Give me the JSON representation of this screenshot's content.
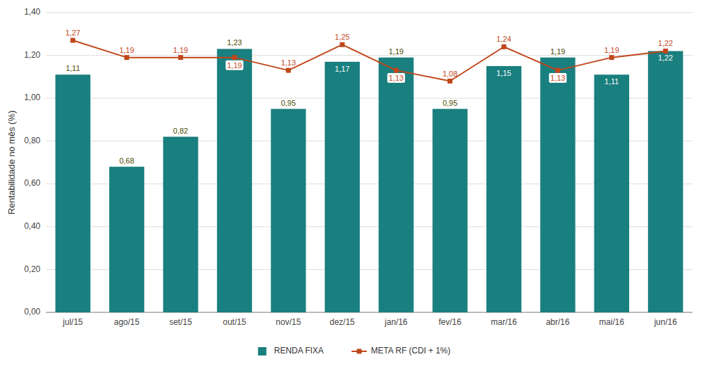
{
  "chart_data": {
    "type": "bar",
    "categories": [
      "jul/15",
      "ago/15",
      "set/15",
      "out/15",
      "nov/15",
      "dez/15",
      "jan/16",
      "fev/16",
      "mar/16",
      "abr/16",
      "mai/16",
      "jun/16"
    ],
    "series": [
      {
        "name": "RENDA FIXA",
        "type": "bar",
        "color": "#1a7f7f",
        "values": [
          1.11,
          0.68,
          0.82,
          1.23,
          0.95,
          1.17,
          1.19,
          0.95,
          1.15,
          1.19,
          1.11,
          1.22
        ],
        "value_labels": [
          "1,11",
          "0,68",
          "0,82",
          "1,23",
          "0,95",
          "1,17",
          "1,19",
          "0,95",
          "1,15",
          "1,19",
          "1,11",
          "1,22"
        ]
      },
      {
        "name": "META RF (CDI + 1%)",
        "type": "line",
        "color": "#c0471b",
        "marker": "square",
        "values": [
          1.27,
          1.19,
          1.19,
          1.19,
          1.13,
          1.25,
          1.13,
          1.08,
          1.24,
          1.13,
          1.19,
          1.22
        ],
        "value_labels": [
          "1,27",
          "1,19",
          "1,19",
          "1,19",
          "1,13",
          "1,25",
          "1,13",
          "1,08",
          "1,24",
          "1,13",
          "1,19",
          "1,22"
        ]
      }
    ],
    "ylabel": "Rentabilidade no mês (%)",
    "ylim": [
      0,
      1.4
    ],
    "yticks": [
      {
        "value": 0.0,
        "label": "0,00"
      },
      {
        "value": 0.2,
        "label": "0,20"
      },
      {
        "value": 0.4,
        "label": "0,40"
      },
      {
        "value": 0.6,
        "label": "0,60"
      },
      {
        "value": 0.8,
        "label": "0,80"
      },
      {
        "value": 1.0,
        "label": "1,00"
      },
      {
        "value": 1.2,
        "label": "1,20"
      },
      {
        "value": 1.4,
        "label": "1,40"
      }
    ],
    "grid": true,
    "data_labels": true,
    "legend": "bottom"
  }
}
